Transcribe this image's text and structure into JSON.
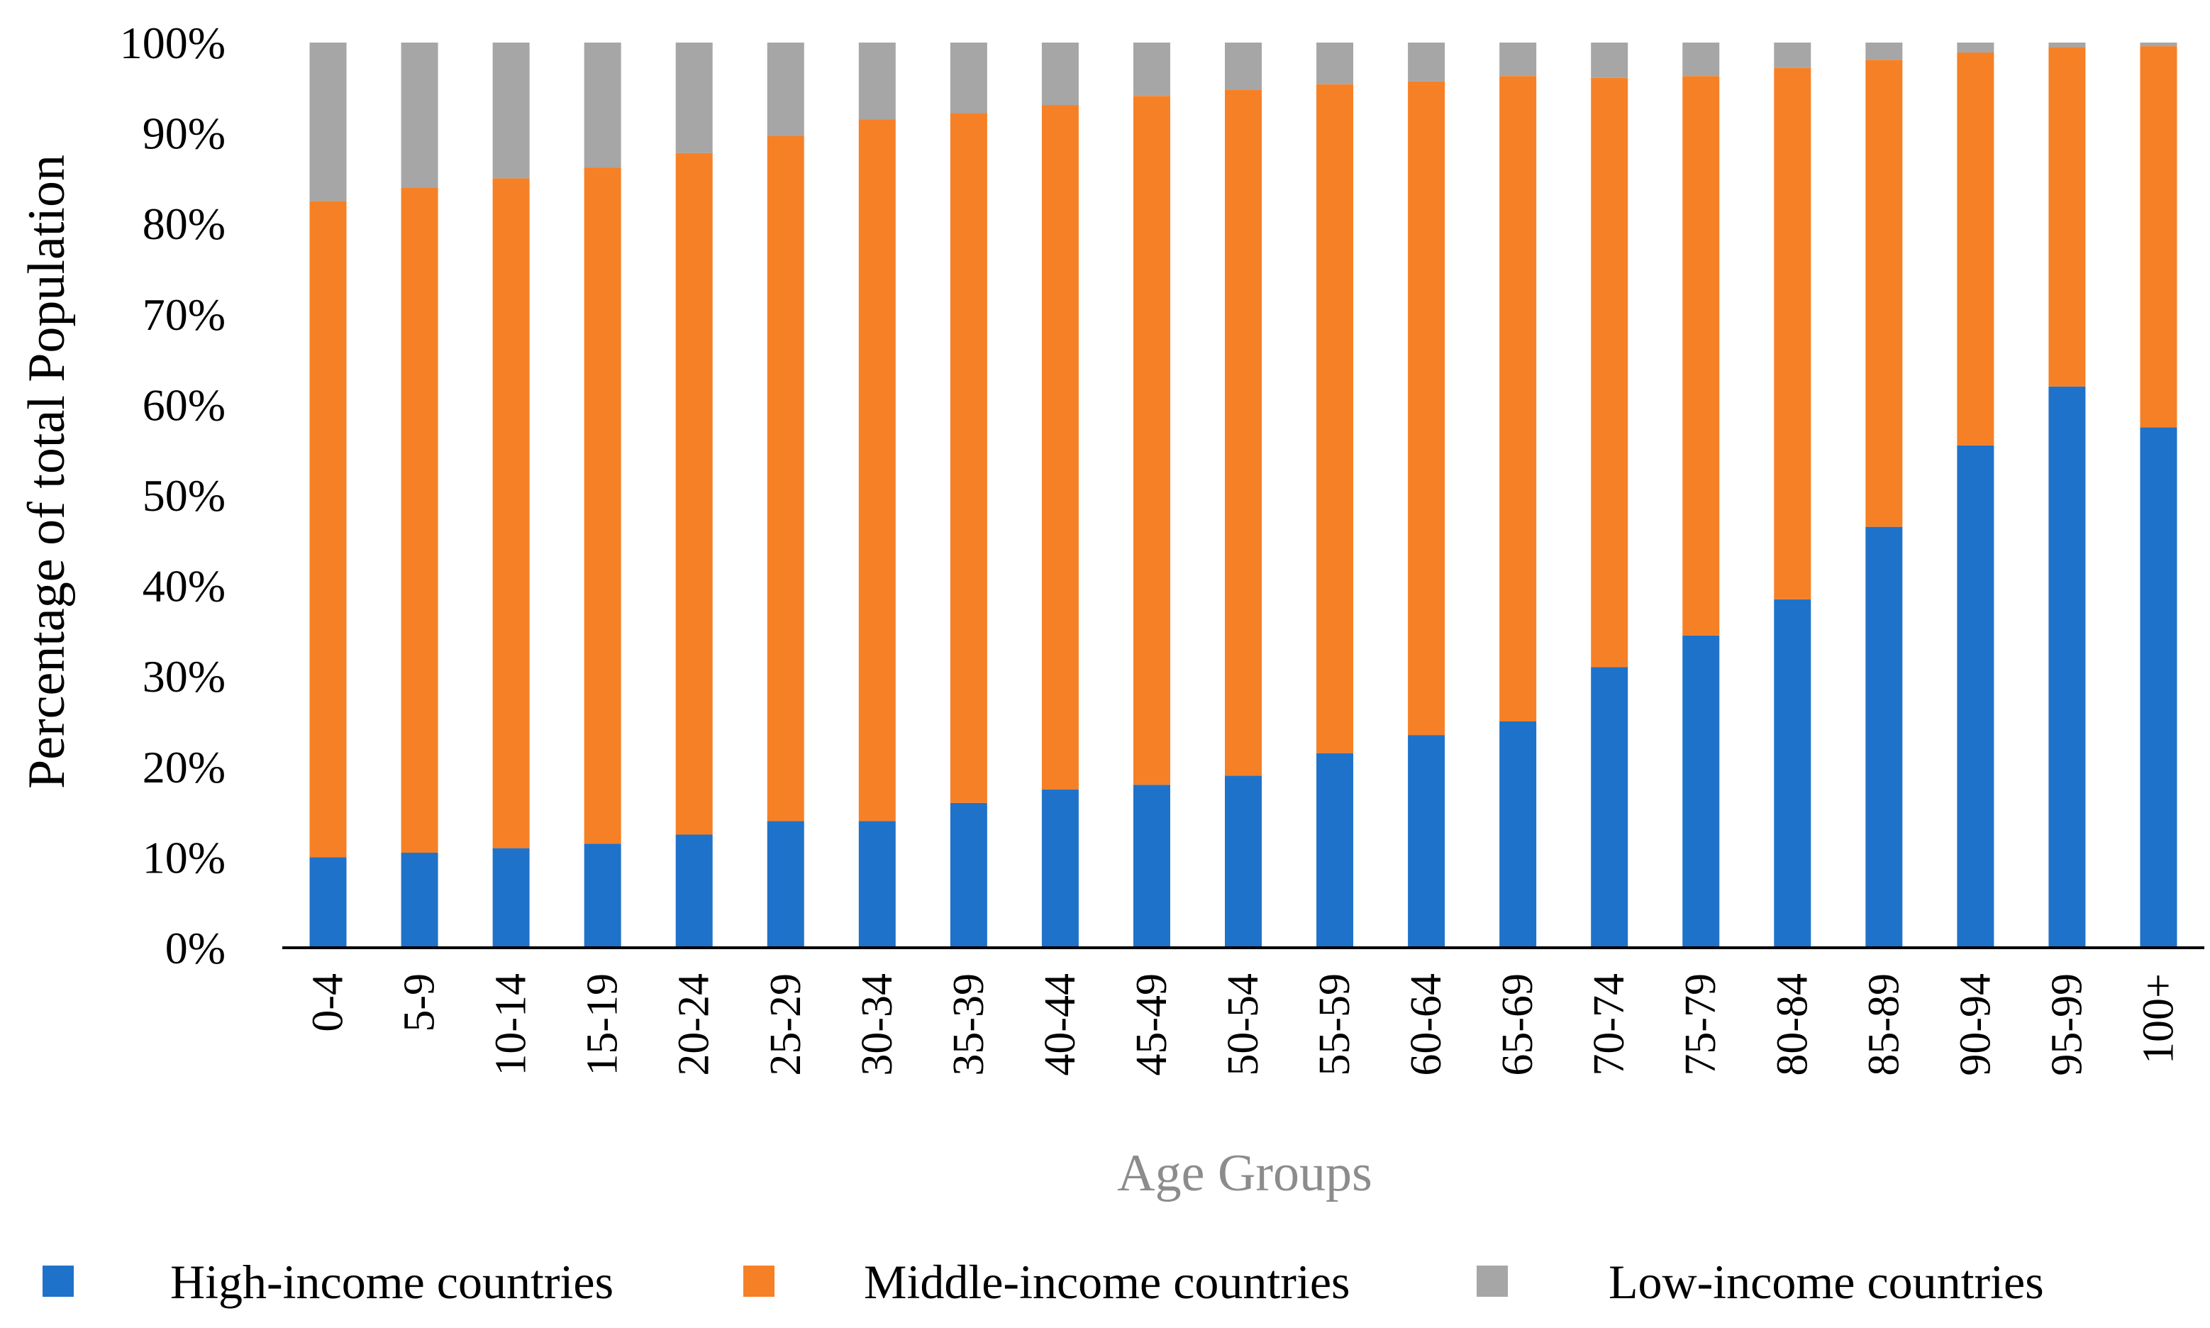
{
  "chart_data": {
    "type": "bar",
    "stacked": true,
    "xlabel": "Age Groups",
    "ylabel": "Percentage of total Population",
    "ylim": [
      0,
      100
    ],
    "yticks": [
      "0%",
      "10%",
      "20%",
      "30%",
      "40%",
      "50%",
      "60%",
      "70%",
      "80%",
      "90%",
      "100%"
    ],
    "categories": [
      "0-4",
      "5-9",
      "10-14",
      "15-19",
      "20-24",
      "25-29",
      "30-34",
      "35-39",
      "40-44",
      "45-49",
      "50-54",
      "55-59",
      "60-64",
      "65-69",
      "70-74",
      "75-79",
      "80-84",
      "85-89",
      "90-94",
      "95-99",
      "100+"
    ],
    "series": [
      {
        "name": "High-income countries",
        "color": "#1f72c9",
        "values": [
          10,
          10.5,
          11,
          11.5,
          12.5,
          14,
          14,
          16,
          17.5,
          18,
          19,
          21.5,
          23.5,
          25,
          31,
          34.5,
          38.5,
          46.5,
          55.5,
          62,
          57.5
        ]
      },
      {
        "name": "Middle-income countries",
        "color": "#f68026",
        "values": [
          72.5,
          73.5,
          74,
          74.7,
          75.3,
          75.7,
          77.5,
          76.2,
          75.6,
          76.1,
          75.8,
          73.9,
          72.2,
          71.3,
          65.1,
          61.8,
          58.7,
          51.6,
          43.4,
          37.5,
          42.1
        ]
      },
      {
        "name": "Low-income countries",
        "color": "#a6a6a6",
        "values": [
          17.5,
          16,
          15,
          13.8,
          12.2,
          10.3,
          8.5,
          7.8,
          6.9,
          5.9,
          5.2,
          4.6,
          4.3,
          3.7,
          3.9,
          3.7,
          2.8,
          1.9,
          1.1,
          0.5,
          0.4
        ]
      }
    ],
    "legend_position": "bottom",
    "grid": false
  }
}
